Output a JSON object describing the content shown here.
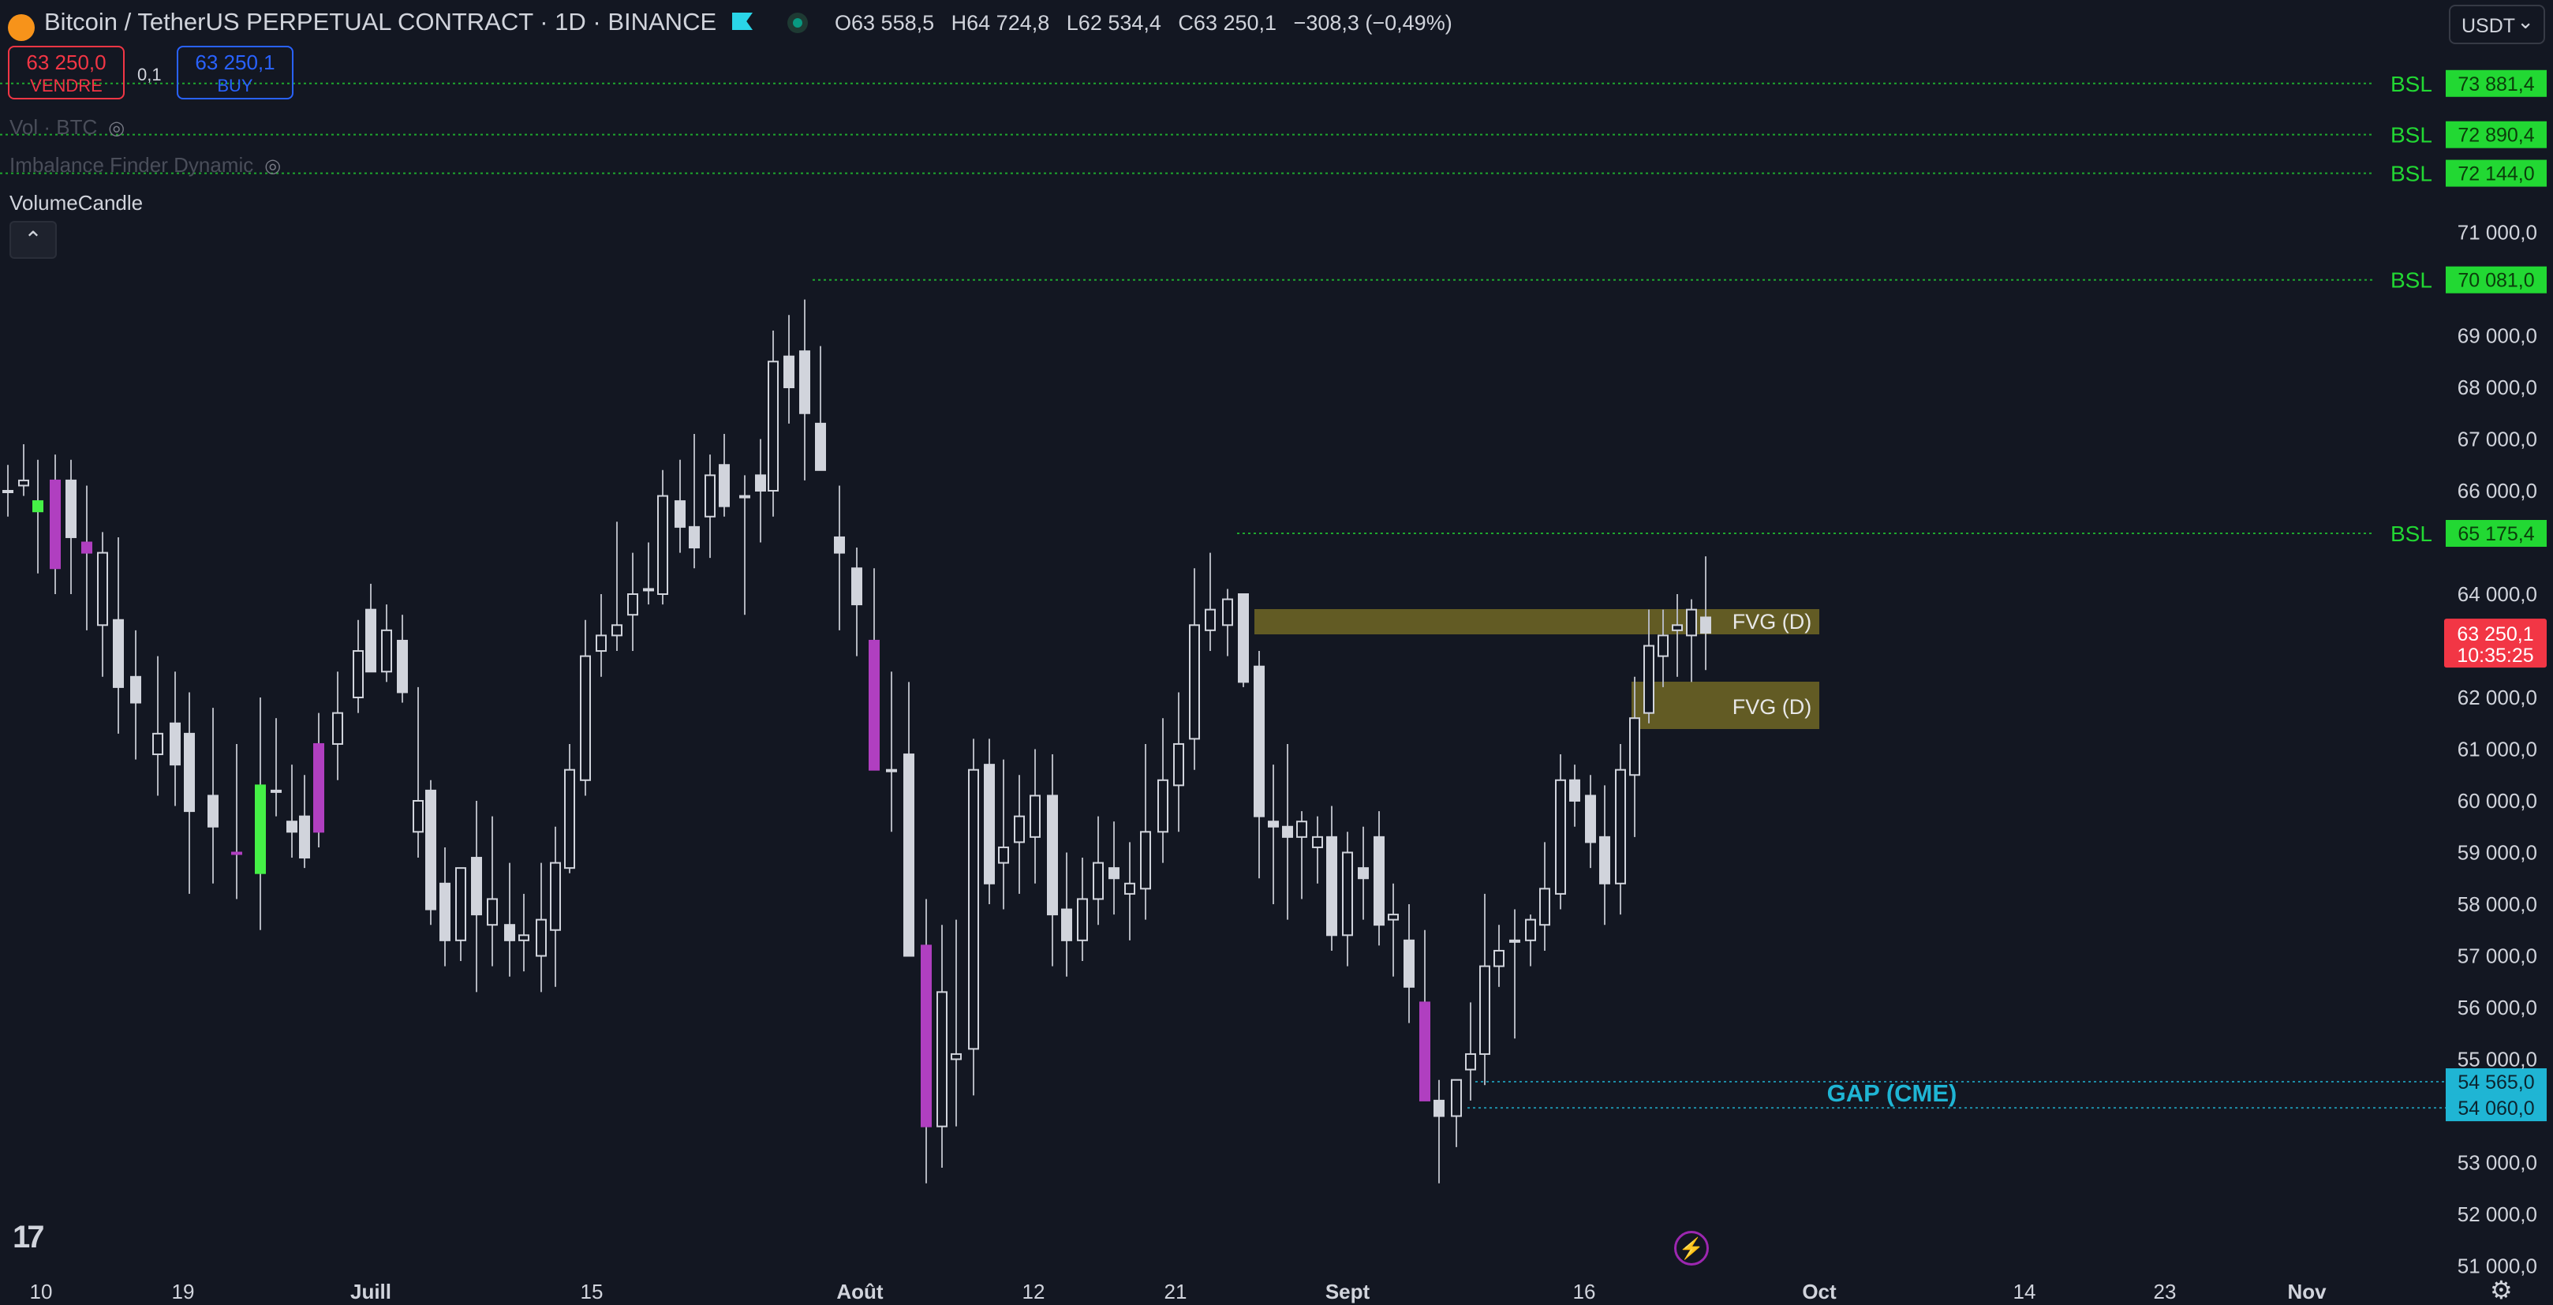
{
  "header": {
    "coin_glyph": "₿",
    "symbol_title": "Bitcoin / TetherUS PERPETUAL CONTRACT · 1D · BINANCE",
    "ohlc": [
      {
        "k": "O",
        "v": "63 558,5"
      },
      {
        "k": "H",
        "v": "64 724,8"
      },
      {
        "k": "L",
        "v": "62 534,4"
      },
      {
        "k": "C",
        "v": "63 250,1"
      }
    ],
    "change": "−308,3 (−0,49%)",
    "currency": "USDT"
  },
  "trade": {
    "sell_price": "63 250,0",
    "sell_label": "VENDRE",
    "spread": "0,1",
    "buy_price": "63 250,1",
    "buy_label": "BUY"
  },
  "indicators": {
    "vol_label": "Vol · BTC",
    "imbalance_label": "Imbalance Finder Dynamic",
    "volumecandle_label": "VolumeCandle",
    "collapse_glyph": "⌃"
  },
  "price_axis": {
    "ticks": [
      "71 000,0",
      "69 000,0",
      "68 000,0",
      "67 000,0",
      "66 000,0",
      "64 000,0",
      "62 000,0",
      "61 000,0",
      "60 000,0",
      "59 000,0",
      "58 000,0",
      "57 000,0",
      "56 000,0",
      "55 000,0",
      "53 000,0",
      "52 000,0",
      "51 000,0"
    ],
    "current_price": "63 250,1",
    "countdown": "10:35:25"
  },
  "time_axis": {
    "labels": [
      "10",
      "19",
      "Juill",
      "15",
      "Août",
      "12",
      "21",
      "Sept",
      "16",
      "Oct",
      "14",
      "23",
      "Nov"
    ]
  },
  "levels": {
    "bsl_label": "BSL",
    "bsl_values": [
      "73 881,4",
      "72 890,4",
      "72 144,0",
      "70 081,0",
      "65 175,4"
    ],
    "gap_label": "GAP (CME)",
    "gap_values": [
      "54 565,0",
      "54 060,0"
    ],
    "fvg_label": "FVG (D)"
  },
  "colors": {
    "background": "#131722",
    "bsl_green": "#22d833",
    "gap_cyan": "#1fb5d4",
    "fvg_fill": "#6b6325",
    "candle_purple": "#b03fc0",
    "candle_green": "#45f046",
    "price_red": "#f23645"
  },
  "icons": {
    "tradingview_logo": "tradingview-logo-icon",
    "flash": "flash-icon",
    "settings": "settings-icon"
  },
  "footer": {
    "logo_text": "17",
    "flash_glyph": "⚡",
    "settings_glyph": "⚙"
  }
}
